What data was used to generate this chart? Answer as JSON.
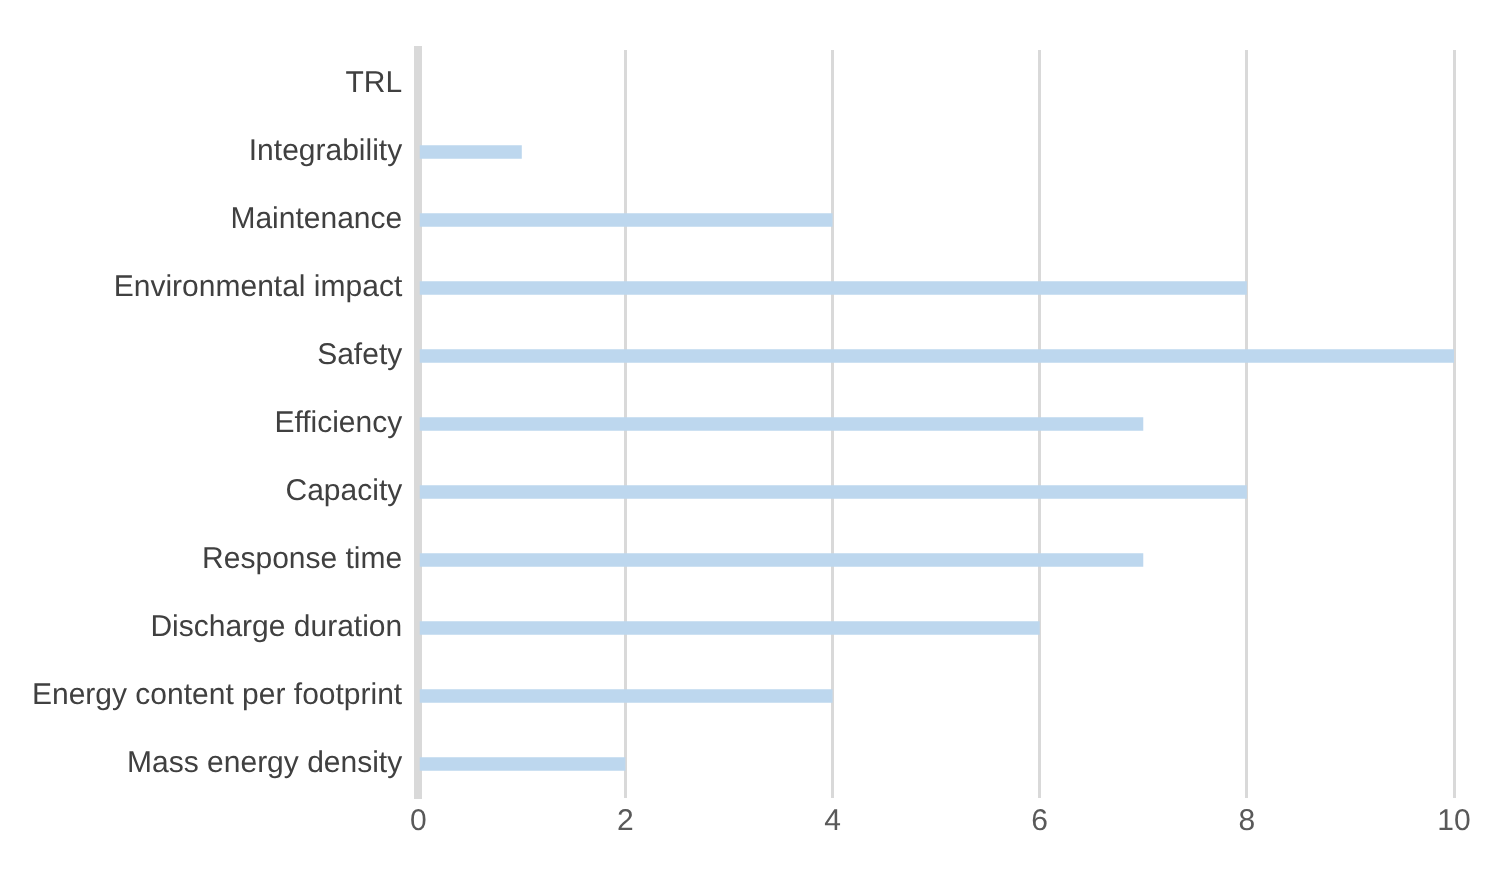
{
  "chart_data": {
    "type": "bar",
    "orientation": "horizontal",
    "categories": [
      "TRL",
      "Integrability",
      "Maintenance",
      "Environmental impact",
      "Safety",
      "Efficiency",
      "Capacity",
      "Response time",
      "Discharge duration",
      "Energy content per footprint",
      "Mass energy density"
    ],
    "values": [
      0,
      1,
      4,
      8,
      10,
      7,
      8,
      7,
      6,
      4,
      2
    ],
    "color": "#bdd7ee",
    "xlim": [
      0,
      10
    ],
    "xticks": [
      0,
      2,
      4,
      6,
      8,
      10
    ],
    "grid": "x"
  }
}
